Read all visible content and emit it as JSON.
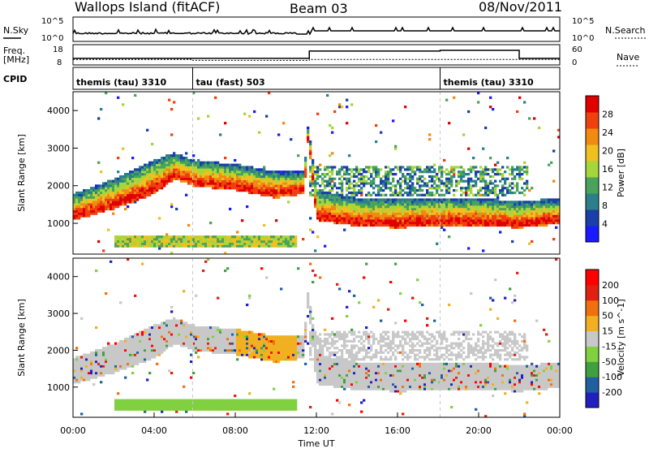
{
  "header": {
    "title": "Wallops Island (fitACF)",
    "beam": "Beam 03",
    "date": "08/Nov/2011"
  },
  "noise_panel": {
    "left_label": "N.Sky",
    "right_label": "N.Search",
    "left_ticks": [
      "10^5",
      "10^0"
    ],
    "right_ticks": [
      "10^5",
      "10^0"
    ]
  },
  "freq_panel": {
    "left_label_1": "Freq.",
    "left_label_2": "[MHz]",
    "right_label": "Nave",
    "left_ticks": [
      "18",
      "8"
    ],
    "right_ticks": [
      "60",
      "0"
    ],
    "freq_segments": [
      {
        "from": 0.0,
        "to": 11.65,
        "value": 10.4
      },
      {
        "from": 11.65,
        "to": 18.1,
        "value": 15.7
      },
      {
        "from": 18.1,
        "to": 22.0,
        "value": 16.2
      },
      {
        "from": 22.0,
        "to": 24.0,
        "value": 10.4
      }
    ],
    "nave_segments": [
      {
        "from": 0.0,
        "to": 5.9,
        "value": 16
      },
      {
        "from": 5.9,
        "to": 11.65,
        "value": 12
      },
      {
        "from": 11.65,
        "to": 24.0,
        "value": 16
      }
    ]
  },
  "cpid": {
    "label": "CPID",
    "segments": [
      {
        "text": "themis (tau) 3310",
        "from": 0.0
      },
      {
        "text": "tau (fast) 503",
        "from": 5.9
      },
      {
        "text": "themis (tau) 3310",
        "from": 18.1
      }
    ]
  },
  "x_axis": {
    "label": "Time UT",
    "ticks": [
      "00:00",
      "04:00",
      "08:00",
      "12:00",
      "16:00",
      "20:00",
      "00:00"
    ]
  },
  "colors": {
    "power": [
      "#1a1aff",
      "#1a3fa8",
      "#2a7f8a",
      "#4aa35a",
      "#a5d63a",
      "#f0c020",
      "#f08a10",
      "#f04010",
      "#e00000"
    ],
    "velocity": [
      "#2020c0",
      "#2060a0",
      "#40a040",
      "#80d040",
      "#c8c8c8",
      "#f0b020",
      "#f07010",
      "#e02010",
      "#ff0000"
    ]
  },
  "chart_data": [
    {
      "type": "heatmap",
      "panel": "power",
      "xlabel": "",
      "ylabel": "Slant Range [km]",
      "xlim": [
        0,
        24
      ],
      "ylim": [
        180,
        4500
      ],
      "yticks": [
        "1000",
        "2000",
        "3000",
        "4000"
      ],
      "colorbar_label": "Power [dB]",
      "colorbar_ticks": [
        "4",
        "8",
        "12",
        "16",
        "20",
        "24",
        "28"
      ],
      "features": [
        {
          "name": "main_echo_band",
          "times": [
            0,
            2,
            4,
            5,
            6,
            8,
            10,
            11.4,
            11.6,
            12,
            14,
            16,
            18,
            20,
            22,
            24
          ],
          "range_low": [
            1200,
            1500,
            1900,
            2300,
            2100,
            2000,
            1800,
            1900,
            3400,
            1200,
            1050,
            1000,
            1050,
            1050,
            1000,
            1100
          ],
          "range_high": [
            1700,
            2100,
            2600,
            2800,
            2600,
            2500,
            2300,
            2300,
            3600,
            1800,
            1600,
            1600,
            1600,
            1600,
            1500,
            1600
          ]
        },
        {
          "name": "near_range_band",
          "times": [
            2,
            11
          ],
          "range_low": 400,
          "range_high": 650
        }
      ]
    },
    {
      "type": "heatmap",
      "panel": "velocity",
      "xlabel": "Time UT",
      "ylabel": "Slant Range [km]",
      "xlim": [
        0,
        24
      ],
      "ylim": [
        180,
        4500
      ],
      "yticks": [
        "1000",
        "2000",
        "3000",
        "4000"
      ],
      "colorbar_label": "Velocity [m s^-1]",
      "colorbar_ticks": [
        "200",
        "100",
        "50",
        "15",
        "-15",
        "-50",
        "-100",
        "-200"
      ]
    }
  ]
}
